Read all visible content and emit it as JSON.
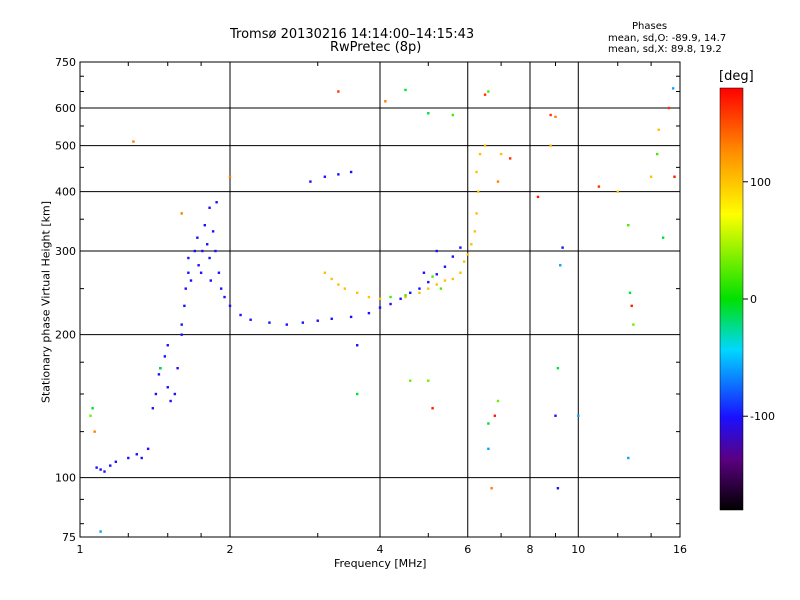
{
  "header": {
    "title_line1": "Tromsø 20130216 14:14:00–14:15:43",
    "title_line2": "RwPretec (8p)",
    "stats_title": "Phases",
    "stats_line1": "mean, sd,O: -89.9, 14.7",
    "stats_line2": "mean, sd,X:  89.8, 19.2"
  },
  "colorbar": {
    "label": "[deg]",
    "ticks": [
      "100",
      "0",
      "-100"
    ],
    "tick_values": [
      100,
      0,
      -100
    ],
    "range": [
      -180,
      180
    ]
  },
  "chart_data": {
    "type": "scatter",
    "title": "Tromsø 20130216 14:14:00–14:15:43",
    "subtitle": "RwPretec (8p)",
    "xlabel": "Frequency [MHz]",
    "ylabel": "Stationary phase Virtual Height [km]",
    "x_scale": "log",
    "y_scale": "log",
    "xlim": [
      1,
      16
    ],
    "ylim": [
      75,
      750
    ],
    "x_ticks": [
      1,
      2,
      4,
      6,
      8,
      10,
      16
    ],
    "x_tick_labels": [
      "1",
      "2",
      "4",
      "6",
      "8",
      "10",
      "16"
    ],
    "y_ticks": [
      75,
      100,
      200,
      300,
      400,
      500,
      600,
      750
    ],
    "y_tick_labels": [
      "75",
      "100",
      "200",
      "300",
      "400",
      "500",
      "600",
      "750"
    ],
    "x_gridlines": [
      2,
      4,
      6,
      8,
      10
    ],
    "y_gridlines": [
      100,
      200,
      300,
      400,
      500,
      600
    ],
    "color_variable": "phase (deg)",
    "series": [
      {
        "points": [
          [
            1.08,
            105
          ],
          [
            1.1,
            104
          ],
          [
            1.12,
            103
          ],
          [
            1.15,
            106
          ],
          [
            1.18,
            108
          ],
          [
            1.25,
            110
          ],
          [
            1.3,
            112
          ],
          [
            1.33,
            110
          ],
          [
            1.37,
            115
          ],
          [
            1.4,
            140
          ],
          [
            1.42,
            150
          ],
          [
            1.44,
            165
          ],
          [
            1.45,
            170
          ],
          [
            1.48,
            180
          ],
          [
            1.5,
            190
          ],
          [
            1.5,
            155
          ],
          [
            1.52,
            145
          ],
          [
            1.55,
            150
          ],
          [
            1.57,
            170
          ],
          [
            1.6,
            200
          ],
          [
            1.6,
            210
          ],
          [
            1.62,
            230
          ],
          [
            1.63,
            250
          ],
          [
            1.65,
            270
          ],
          [
            1.65,
            290
          ],
          [
            1.67,
            260
          ],
          [
            1.7,
            300
          ],
          [
            1.72,
            320
          ],
          [
            1.73,
            280
          ],
          [
            1.75,
            270
          ],
          [
            1.76,
            300
          ],
          [
            1.78,
            340
          ],
          [
            1.8,
            310
          ],
          [
            1.82,
            290
          ],
          [
            1.82,
            370
          ],
          [
            1.83,
            260
          ],
          [
            1.85,
            330
          ],
          [
            1.87,
            300
          ],
          [
            1.88,
            380
          ],
          [
            1.9,
            270
          ],
          [
            1.92,
            250
          ],
          [
            1.95,
            240
          ],
          [
            2.0,
            230
          ],
          [
            2.1,
            220
          ],
          [
            2.2,
            215
          ],
          [
            2.4,
            212
          ],
          [
            2.6,
            210
          ],
          [
            2.8,
            212
          ],
          [
            3.0,
            214
          ],
          [
            3.2,
            216
          ],
          [
            3.5,
            218
          ],
          [
            3.8,
            222
          ],
          [
            4.0,
            228
          ],
          [
            4.2,
            232
          ],
          [
            4.4,
            238
          ],
          [
            4.6,
            245
          ],
          [
            4.8,
            250
          ],
          [
            5.0,
            258
          ],
          [
            5.2,
            268
          ],
          [
            5.4,
            278
          ],
          [
            5.6,
            292
          ],
          [
            5.8,
            305
          ],
          [
            2.9,
            420
          ],
          [
            3.1,
            430
          ],
          [
            3.3,
            435
          ],
          [
            3.5,
            440
          ],
          [
            5.2,
            300
          ],
          [
            4.9,
            270
          ],
          [
            3.6,
            190
          ],
          [
            9.1,
            95
          ],
          [
            9.0,
            135
          ],
          [
            9.3,
            305
          ]
        ],
        "phase": -100
      },
      {
        "points": [
          [
            3.1,
            270
          ],
          [
            3.2,
            262
          ],
          [
            3.3,
            255
          ],
          [
            3.4,
            250
          ],
          [
            3.6,
            245
          ],
          [
            3.8,
            240
          ],
          [
            4.0,
            238
          ],
          [
            4.5,
            240
          ],
          [
            4.8,
            245
          ],
          [
            5.0,
            250
          ],
          [
            5.2,
            255
          ],
          [
            5.4,
            260
          ],
          [
            5.6,
            262
          ],
          [
            5.8,
            270
          ],
          [
            5.9,
            285
          ],
          [
            6.0,
            295
          ],
          [
            6.1,
            310
          ],
          [
            6.2,
            330
          ],
          [
            6.25,
            360
          ],
          [
            6.3,
            400
          ],
          [
            6.25,
            440
          ],
          [
            6.35,
            480
          ],
          [
            6.5,
            500
          ],
          [
            7.0,
            480
          ],
          [
            8.8,
            500
          ],
          [
            12.0,
            400
          ],
          [
            14.0,
            430
          ],
          [
            14.5,
            540
          ]
        ],
        "phase": 100
      },
      {
        "points": [
          [
            4.2,
            240
          ],
          [
            4.5,
            242
          ],
          [
            5.1,
            265
          ],
          [
            5.3,
            250
          ],
          [
            6.6,
            650
          ],
          [
            5.6,
            580
          ],
          [
            12.6,
            340
          ],
          [
            14.4,
            480
          ]
        ],
        "phase": 20
      },
      {
        "points": [
          [
            1.07,
            125
          ],
          [
            1.28,
            510
          ],
          [
            1.6,
            360
          ],
          [
            2.0,
            430
          ],
          [
            4.1,
            620
          ],
          [
            6.7,
            95
          ],
          [
            6.9,
            420
          ],
          [
            9.0,
            575
          ]
        ],
        "phase": 130
      },
      {
        "points": [
          [
            3.3,
            650
          ],
          [
            6.5,
            640
          ],
          [
            7.3,
            470
          ],
          [
            8.8,
            580
          ],
          [
            11.0,
            410
          ],
          [
            15.2,
            600
          ]
        ],
        "phase": 160
      },
      {
        "points": [
          [
            1.06,
            140
          ],
          [
            1.45,
            170
          ],
          [
            3.6,
            150
          ],
          [
            4.5,
            655
          ],
          [
            5.0,
            585
          ],
          [
            6.6,
            130
          ],
          [
            9.1,
            170
          ],
          [
            12.7,
            245
          ],
          [
            14.8,
            320
          ]
        ],
        "phase": -10
      },
      {
        "points": [
          [
            1.1,
            77
          ],
          [
            6.6,
            115
          ],
          [
            9.2,
            280
          ],
          [
            10.0,
            135
          ],
          [
            12.6,
            110
          ],
          [
            15.5,
            660
          ]
        ],
        "phase": -60
      },
      {
        "points": [
          [
            5.1,
            140
          ],
          [
            6.8,
            135
          ],
          [
            8.3,
            390
          ],
          [
            12.8,
            230
          ],
          [
            15.6,
            430
          ]
        ],
        "phase": 170
      },
      {
        "points": [
          [
            1.05,
            135
          ],
          [
            4.6,
            160
          ],
          [
            5.0,
            160
          ],
          [
            6.9,
            145
          ],
          [
            12.9,
            210
          ]
        ],
        "phase": 30
      }
    ]
  }
}
